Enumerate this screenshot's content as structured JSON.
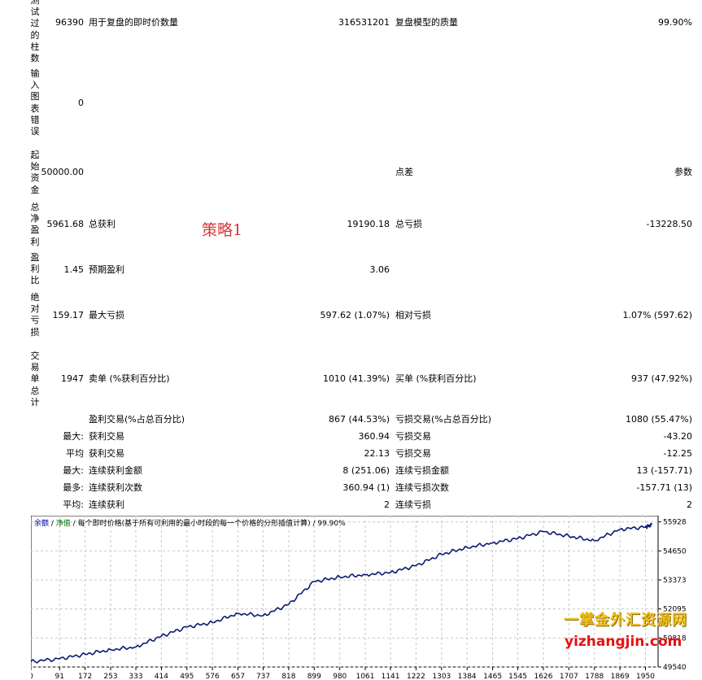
{
  "stats": {
    "ticks_label": "用于复盘的即时价数量",
    "ticks_value": "316531201",
    "quality_label": "复盘模型的质量",
    "quality_value": "99.90%",
    "bars_label": "测试过的柱数",
    "bars_value": "96390",
    "errors_label": "输入图表错误",
    "errors_value": "0",
    "deposit_label": "起始资金",
    "deposit_value": "50000.00",
    "spread_label": "点差",
    "spread_value": "参数",
    "net_label": "总净盈利",
    "net_value": "5961.68",
    "gross_profit_label": "总获利",
    "gross_profit_value": "19190.18",
    "gross_loss_label": "总亏损",
    "gross_loss_value": "-13228.50",
    "pf_label": "盈利比",
    "pf_value": "1.45",
    "payoff_label": "预期盈利",
    "payoff_value": "3.06",
    "abs_dd_label": "绝对亏损",
    "abs_dd_value": "159.17",
    "max_dd_label": "最大亏损",
    "max_dd_value": "597.62 (1.07%)",
    "rel_dd_label": "相对亏损",
    "rel_dd_value": "1.07% (597.62)",
    "trades_label": "交易单总计",
    "trades_value": "1947",
    "short_label": "卖单 (%获利百分比)",
    "short_value": "1010 (41.39%)",
    "long_label": "买单 (%获利百分比)",
    "long_value": "937 (47.92%)",
    "win_label": "盈利交易(%占总百分比)",
    "win_value": "867 (44.53%)",
    "loss_label": "亏损交易(%占总百分比)",
    "loss_value": "1080 (55.47%)",
    "max1_label": "最大:",
    "largest_win_label": "获利交易",
    "largest_win_value": "360.94",
    "largest_loss_label": "亏损交易",
    "largest_loss_value": "-43.20",
    "avg_label": "平均",
    "avg_win_label": "获利交易",
    "avg_win_value": "22.13",
    "avg_loss_label": "亏损交易",
    "avg_loss_value": "-12.25",
    "max2_label": "最大:",
    "cons_win_amt_label": "连续获利金额",
    "cons_win_amt_value": "8 (251.06)",
    "cons_loss_amt_label": "连续亏损金额",
    "cons_loss_amt_value": "13 (-157.71)",
    "most_label": "最多:",
    "cons_win_cnt_label": "连续获利次数",
    "cons_win_cnt_value": "360.94 (1)",
    "cons_loss_cnt_label": "连续亏损次数",
    "cons_loss_cnt_value": "-157.71 (13)",
    "avg2_label": "平均:",
    "avg_cons_win_label": "连续获利",
    "avg_cons_win_value": "2",
    "avg_cons_loss_label": "连续亏损",
    "avg_cons_loss_value": "2"
  },
  "stamp": "策略1",
  "watermark": {
    "line1": "一掌金外汇资源网",
    "line2": "yizhangjin.com"
  },
  "chart_header": {
    "tab_balance": "余额",
    "sep1": " / ",
    "tab_equity": "净值",
    "sep2": " / ",
    "model": "每个即时价格(基于所有可利用的最小时段的每一个价格的分形插值计算)",
    "sep3": " / ",
    "quality": "99.90%"
  },
  "chart_data": {
    "type": "line",
    "series": [
      {
        "color": "#0f1a72",
        "x": [
          0,
          91,
          172,
          253,
          333,
          414,
          495,
          576,
          657,
          737,
          818,
          899,
          980,
          1061,
          1141,
          1222,
          1303,
          1384,
          1465,
          1545,
          1626,
          1707,
          1788,
          1869,
          1950,
          1970
        ],
        "values": [
          49780,
          49900,
          50100,
          50300,
          50420,
          50900,
          51300,
          51500,
          51900,
          51800,
          52300,
          53300,
          53500,
          53600,
          53700,
          54000,
          54500,
          54800,
          55000,
          55200,
          55500,
          55300,
          55100,
          55600,
          55700,
          55800
        ]
      }
    ],
    "x_ticks": [
      "0",
      "91",
      "172",
      "253",
      "333",
      "414",
      "495",
      "576",
      "657",
      "737",
      "818",
      "899",
      "980",
      "1061",
      "1141",
      "1222",
      "1303",
      "1384",
      "1465",
      "1545",
      "1626",
      "1707",
      "1788",
      "1869",
      "1950"
    ],
    "y_ticks": [
      "55928",
      "54650",
      "53373",
      "52095",
      "50818",
      "49540"
    ],
    "xlim": [
      0,
      1990
    ],
    "ylim": [
      49540,
      56200
    ],
    "grid": true
  }
}
